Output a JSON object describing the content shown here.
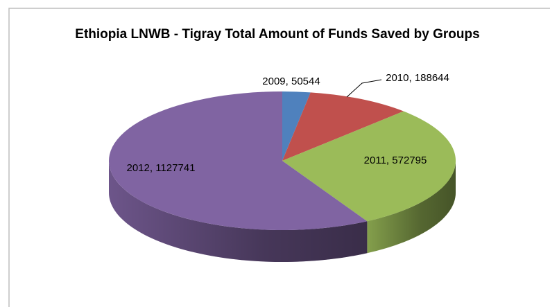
{
  "chart_data": {
    "type": "pie3d",
    "title": "Ethiopia LNWB - Tigray Total Amount of Funds Saved by Groups",
    "categories": [
      "2009",
      "2010",
      "2011",
      "2012"
    ],
    "values": [
      50544,
      188644,
      572795,
      1127741
    ],
    "value_labels": [
      "2009, 50544",
      "2010, 188644",
      "2011, 572795",
      "2012, 1127741"
    ],
    "colors": [
      "#4f81bd",
      "#c0504d",
      "#9bbb59",
      "#8064a2"
    ]
  }
}
